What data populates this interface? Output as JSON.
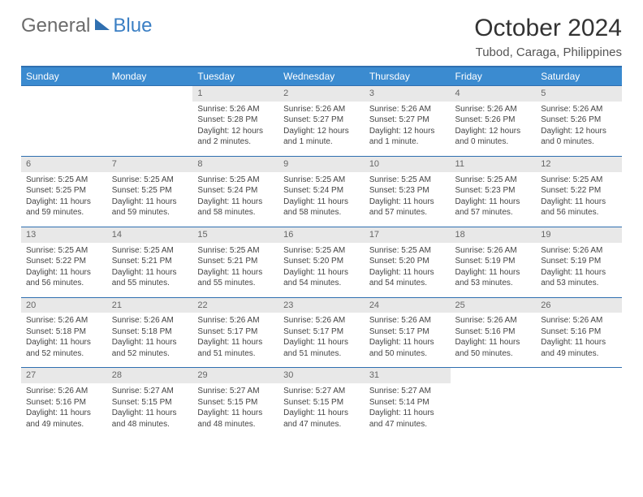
{
  "brand": {
    "part1": "General",
    "part2": "Blue"
  },
  "title": "October 2024",
  "location": "Tubod, Caraga, Philippines",
  "colors": {
    "header_bg": "#3b8bd0",
    "header_border": "#2f6fb0",
    "daynum_bg": "#e8e8e8",
    "text": "#444444",
    "brand_gray": "#6b6b6b",
    "brand_blue": "#3b7fc4"
  },
  "weekdays": [
    "Sunday",
    "Monday",
    "Tuesday",
    "Wednesday",
    "Thursday",
    "Friday",
    "Saturday"
  ],
  "weeks": [
    [
      null,
      null,
      {
        "n": "1",
        "sr": "Sunrise: 5:26 AM",
        "ss": "Sunset: 5:28 PM",
        "dl": "Daylight: 12 hours and 2 minutes."
      },
      {
        "n": "2",
        "sr": "Sunrise: 5:26 AM",
        "ss": "Sunset: 5:27 PM",
        "dl": "Daylight: 12 hours and 1 minute."
      },
      {
        "n": "3",
        "sr": "Sunrise: 5:26 AM",
        "ss": "Sunset: 5:27 PM",
        "dl": "Daylight: 12 hours and 1 minute."
      },
      {
        "n": "4",
        "sr": "Sunrise: 5:26 AM",
        "ss": "Sunset: 5:26 PM",
        "dl": "Daylight: 12 hours and 0 minutes."
      },
      {
        "n": "5",
        "sr": "Sunrise: 5:26 AM",
        "ss": "Sunset: 5:26 PM",
        "dl": "Daylight: 12 hours and 0 minutes."
      }
    ],
    [
      {
        "n": "6",
        "sr": "Sunrise: 5:25 AM",
        "ss": "Sunset: 5:25 PM",
        "dl": "Daylight: 11 hours and 59 minutes."
      },
      {
        "n": "7",
        "sr": "Sunrise: 5:25 AM",
        "ss": "Sunset: 5:25 PM",
        "dl": "Daylight: 11 hours and 59 minutes."
      },
      {
        "n": "8",
        "sr": "Sunrise: 5:25 AM",
        "ss": "Sunset: 5:24 PM",
        "dl": "Daylight: 11 hours and 58 minutes."
      },
      {
        "n": "9",
        "sr": "Sunrise: 5:25 AM",
        "ss": "Sunset: 5:24 PM",
        "dl": "Daylight: 11 hours and 58 minutes."
      },
      {
        "n": "10",
        "sr": "Sunrise: 5:25 AM",
        "ss": "Sunset: 5:23 PM",
        "dl": "Daylight: 11 hours and 57 minutes."
      },
      {
        "n": "11",
        "sr": "Sunrise: 5:25 AM",
        "ss": "Sunset: 5:23 PM",
        "dl": "Daylight: 11 hours and 57 minutes."
      },
      {
        "n": "12",
        "sr": "Sunrise: 5:25 AM",
        "ss": "Sunset: 5:22 PM",
        "dl": "Daylight: 11 hours and 56 minutes."
      }
    ],
    [
      {
        "n": "13",
        "sr": "Sunrise: 5:25 AM",
        "ss": "Sunset: 5:22 PM",
        "dl": "Daylight: 11 hours and 56 minutes."
      },
      {
        "n": "14",
        "sr": "Sunrise: 5:25 AM",
        "ss": "Sunset: 5:21 PM",
        "dl": "Daylight: 11 hours and 55 minutes."
      },
      {
        "n": "15",
        "sr": "Sunrise: 5:25 AM",
        "ss": "Sunset: 5:21 PM",
        "dl": "Daylight: 11 hours and 55 minutes."
      },
      {
        "n": "16",
        "sr": "Sunrise: 5:25 AM",
        "ss": "Sunset: 5:20 PM",
        "dl": "Daylight: 11 hours and 54 minutes."
      },
      {
        "n": "17",
        "sr": "Sunrise: 5:25 AM",
        "ss": "Sunset: 5:20 PM",
        "dl": "Daylight: 11 hours and 54 minutes."
      },
      {
        "n": "18",
        "sr": "Sunrise: 5:26 AM",
        "ss": "Sunset: 5:19 PM",
        "dl": "Daylight: 11 hours and 53 minutes."
      },
      {
        "n": "19",
        "sr": "Sunrise: 5:26 AM",
        "ss": "Sunset: 5:19 PM",
        "dl": "Daylight: 11 hours and 53 minutes."
      }
    ],
    [
      {
        "n": "20",
        "sr": "Sunrise: 5:26 AM",
        "ss": "Sunset: 5:18 PM",
        "dl": "Daylight: 11 hours and 52 minutes."
      },
      {
        "n": "21",
        "sr": "Sunrise: 5:26 AM",
        "ss": "Sunset: 5:18 PM",
        "dl": "Daylight: 11 hours and 52 minutes."
      },
      {
        "n": "22",
        "sr": "Sunrise: 5:26 AM",
        "ss": "Sunset: 5:17 PM",
        "dl": "Daylight: 11 hours and 51 minutes."
      },
      {
        "n": "23",
        "sr": "Sunrise: 5:26 AM",
        "ss": "Sunset: 5:17 PM",
        "dl": "Daylight: 11 hours and 51 minutes."
      },
      {
        "n": "24",
        "sr": "Sunrise: 5:26 AM",
        "ss": "Sunset: 5:17 PM",
        "dl": "Daylight: 11 hours and 50 minutes."
      },
      {
        "n": "25",
        "sr": "Sunrise: 5:26 AM",
        "ss": "Sunset: 5:16 PM",
        "dl": "Daylight: 11 hours and 50 minutes."
      },
      {
        "n": "26",
        "sr": "Sunrise: 5:26 AM",
        "ss": "Sunset: 5:16 PM",
        "dl": "Daylight: 11 hours and 49 minutes."
      }
    ],
    [
      {
        "n": "27",
        "sr": "Sunrise: 5:26 AM",
        "ss": "Sunset: 5:16 PM",
        "dl": "Daylight: 11 hours and 49 minutes."
      },
      {
        "n": "28",
        "sr": "Sunrise: 5:27 AM",
        "ss": "Sunset: 5:15 PM",
        "dl": "Daylight: 11 hours and 48 minutes."
      },
      {
        "n": "29",
        "sr": "Sunrise: 5:27 AM",
        "ss": "Sunset: 5:15 PM",
        "dl": "Daylight: 11 hours and 48 minutes."
      },
      {
        "n": "30",
        "sr": "Sunrise: 5:27 AM",
        "ss": "Sunset: 5:15 PM",
        "dl": "Daylight: 11 hours and 47 minutes."
      },
      {
        "n": "31",
        "sr": "Sunrise: 5:27 AM",
        "ss": "Sunset: 5:14 PM",
        "dl": "Daylight: 11 hours and 47 minutes."
      },
      null,
      null
    ]
  ]
}
